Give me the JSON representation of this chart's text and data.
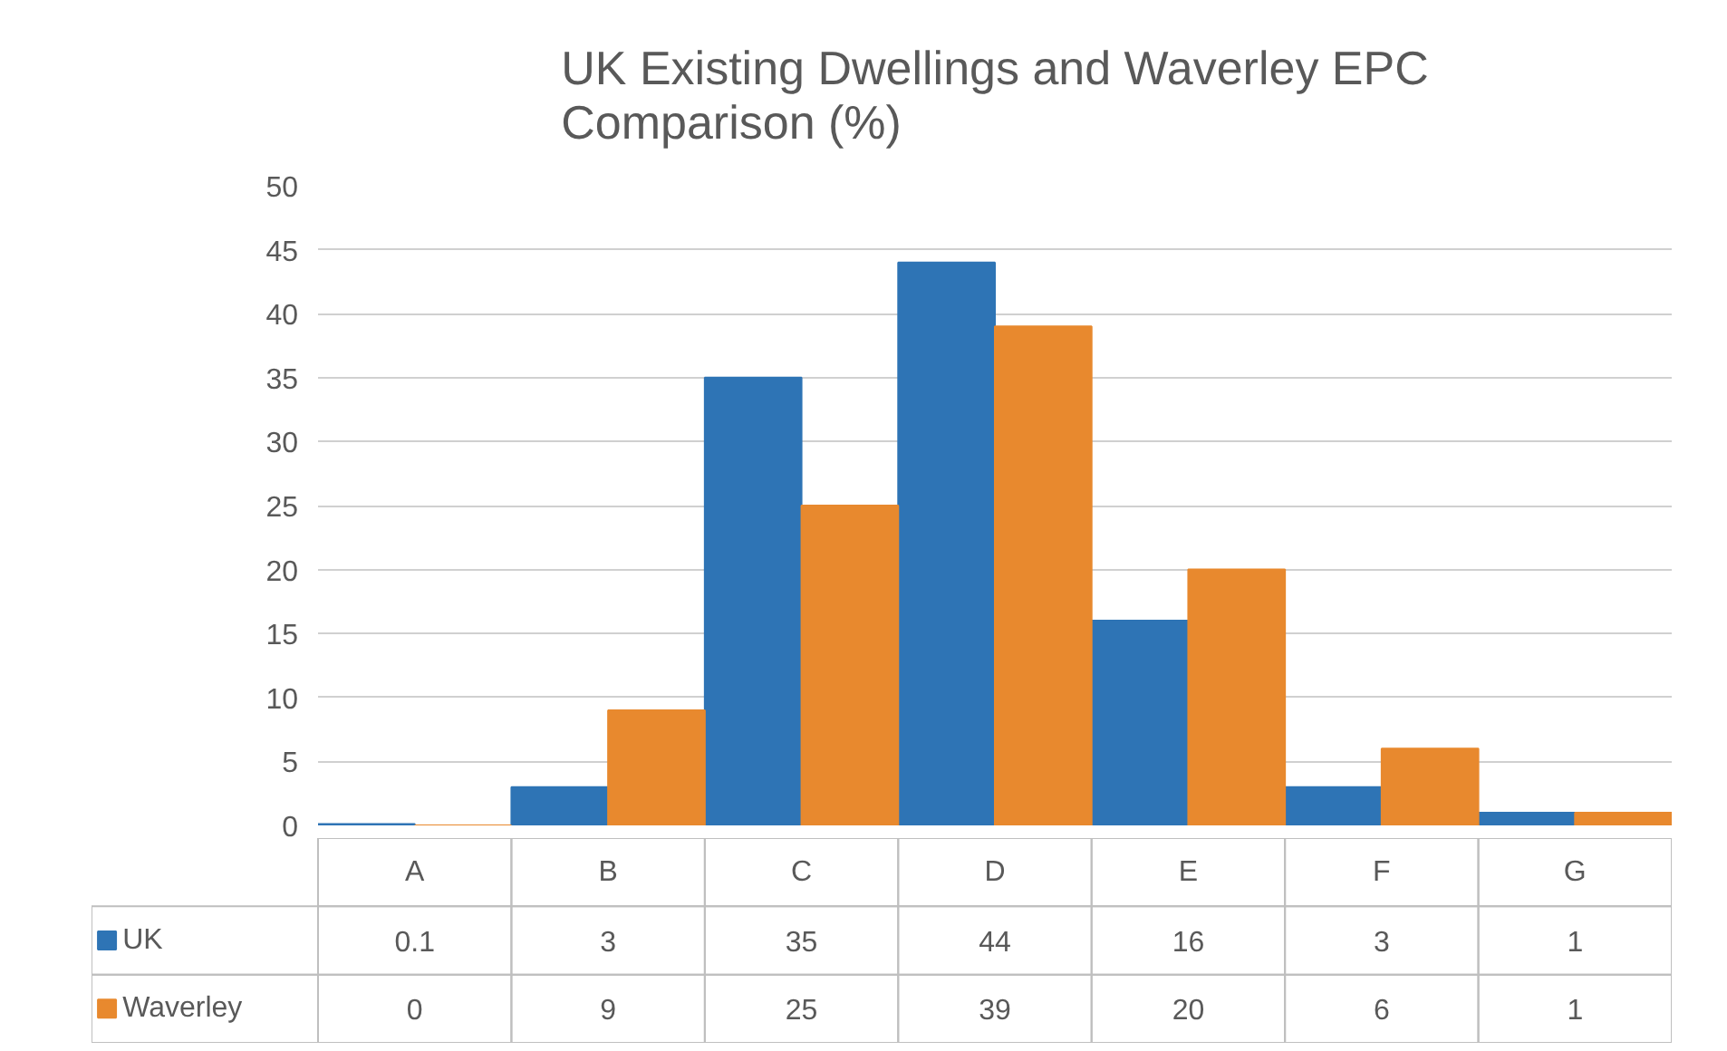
{
  "chart_data": {
    "type": "bar",
    "title": "UK Existing Dwellings and Waverley EPC Comparison (%)",
    "categories": [
      "A",
      "B",
      "C",
      "D",
      "E",
      "F",
      "G"
    ],
    "series": [
      {
        "name": "UK",
        "color": "#2e74b5",
        "values": [
          0.1,
          3,
          35,
          44,
          16,
          3,
          1
        ]
      },
      {
        "name": "Waverley",
        "color": "#e8892e",
        "values": [
          0,
          9,
          25,
          39,
          20,
          6,
          1
        ]
      }
    ],
    "ylim": [
      0,
      50
    ],
    "yticks": [
      0,
      5,
      10,
      15,
      20,
      25,
      30,
      35,
      40,
      45,
      50
    ],
    "grid": "y",
    "data_labels": true,
    "legend": "bottom"
  }
}
